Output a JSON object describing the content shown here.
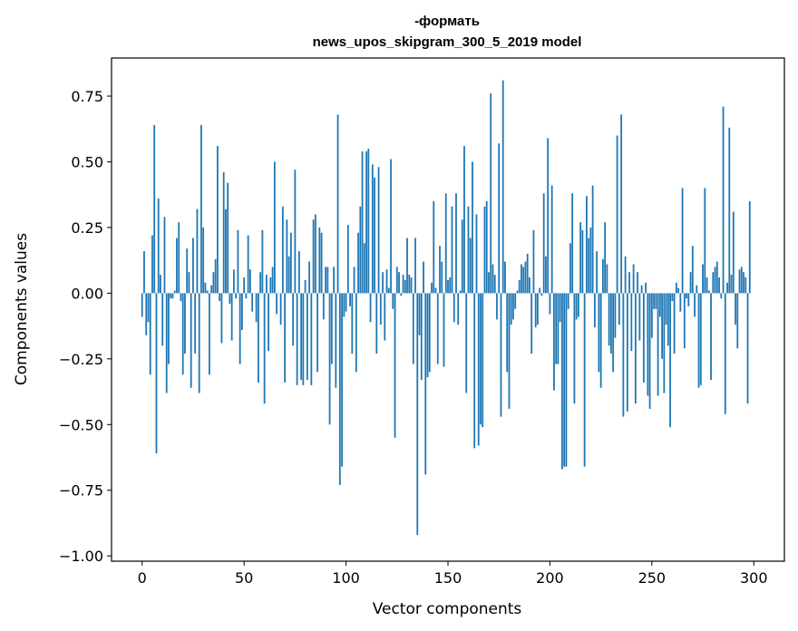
{
  "chart_data": {
    "type": "bar",
    "title_lines": [
      "-формать",
      "news_upos_skipgram_300_5_2019 model"
    ],
    "xlabel": "Vector components",
    "ylabel": "Components values",
    "xlim": [
      -15,
      315
    ],
    "ylim": [
      -1.02,
      0.895
    ],
    "xticks": [
      0,
      50,
      100,
      150,
      200,
      250,
      300
    ],
    "yticks": [
      -1.0,
      -0.75,
      -0.5,
      -0.25,
      0.0,
      0.25,
      0.5,
      0.75
    ],
    "ytick_labels": [
      "−1.00",
      "−0.75",
      "−0.50",
      "−0.25",
      "0.00",
      "0.25",
      "0.50",
      "0.75"
    ],
    "grid": false,
    "legend": "none",
    "bar_color": "#1f77b4",
    "values": [
      -0.09,
      0.16,
      -0.16,
      -0.11,
      -0.31,
      0.22,
      0.64,
      -0.61,
      0.36,
      0.07,
      -0.2,
      0.29,
      -0.38,
      -0.27,
      -0.02,
      -0.02,
      0.01,
      0.21,
      0.27,
      -0.03,
      -0.31,
      -0.23,
      0.17,
      0.08,
      -0.36,
      0.21,
      -0.23,
      0.32,
      -0.38,
      0.64,
      0.25,
      0.04,
      0.01,
      -0.31,
      0.03,
      0.08,
      0.13,
      0.56,
      -0.03,
      -0.19,
      0.46,
      0.32,
      0.42,
      -0.04,
      -0.18,
      0.09,
      -0.02,
      0.24,
      -0.27,
      -0.14,
      0.06,
      -0.02,
      0.22,
      0.09,
      -0.07,
      0.0,
      -0.11,
      -0.34,
      0.08,
      0.24,
      -0.42,
      0.07,
      -0.22,
      0.06,
      0.1,
      0.5,
      -0.08,
      0.0,
      -0.12,
      0.33,
      -0.34,
      0.28,
      0.14,
      0.23,
      -0.2,
      0.47,
      -0.35,
      0.16,
      -0.33,
      -0.35,
      0.05,
      -0.33,
      0.12,
      -0.35,
      0.28,
      0.3,
      -0.3,
      0.25,
      0.23,
      -0.1,
      0.1,
      0.1,
      -0.5,
      -0.27,
      0.1,
      -0.36,
      0.68,
      -0.73,
      -0.66,
      -0.09,
      -0.07,
      0.26,
      -0.05,
      -0.23,
      0.1,
      -0.3,
      0.23,
      0.33,
      0.54,
      0.19,
      0.54,
      0.55,
      -0.11,
      0.49,
      0.44,
      -0.23,
      0.48,
      -0.12,
      0.08,
      -0.18,
      0.09,
      0.02,
      0.51,
      -0.06,
      -0.55,
      0.1,
      0.08,
      -0.01,
      0.07,
      0.05,
      0.21,
      0.07,
      0.06,
      -0.27,
      0.21,
      -0.92,
      -0.16,
      -0.33,
      0.12,
      -0.69,
      -0.32,
      -0.3,
      0.04,
      0.35,
      0.02,
      -0.27,
      0.18,
      0.12,
      -0.28,
      0.38,
      0.05,
      0.06,
      0.33,
      -0.11,
      0.38,
      -0.12,
      0.01,
      0.28,
      0.56,
      -0.38,
      0.33,
      0.21,
      0.5,
      -0.59,
      0.3,
      -0.58,
      -0.5,
      -0.51,
      0.33,
      0.35,
      0.08,
      0.76,
      0.11,
      0.07,
      -0.1,
      0.57,
      -0.47,
      0.81,
      0.12,
      -0.3,
      -0.44,
      -0.12,
      -0.1,
      -0.06,
      0.01,
      0.05,
      0.11,
      0.1,
      0.12,
      0.15,
      0.06,
      -0.23,
      0.24,
      -0.13,
      -0.12,
      0.02,
      -0.01,
      0.38,
      0.14,
      0.59,
      -0.08,
      0.41,
      -0.37,
      -0.27,
      -0.27,
      -0.11,
      -0.67,
      -0.66,
      -0.66,
      -0.06,
      0.19,
      0.38,
      -0.42,
      -0.1,
      -0.09,
      0.27,
      0.24,
      -0.66,
      0.37,
      0.21,
      0.25,
      0.41,
      -0.13,
      0.16,
      -0.3,
      -0.36,
      0.13,
      0.27,
      0.11,
      -0.2,
      -0.23,
      -0.3,
      -0.17,
      0.6,
      -0.12,
      0.68,
      -0.47,
      0.14,
      -0.45,
      0.08,
      -0.22,
      0.11,
      -0.42,
      0.08,
      -0.18,
      0.03,
      -0.34,
      0.04,
      -0.39,
      -0.44,
      -0.17,
      -0.06,
      -0.06,
      -0.39,
      -0.09,
      -0.25,
      -0.38,
      -0.12,
      -0.2,
      -0.51,
      -0.03,
      -0.23,
      0.04,
      0.02,
      -0.07,
      0.4,
      -0.21,
      -0.02,
      -0.05,
      0.08,
      0.18,
      -0.09,
      0.03,
      -0.36,
      -0.35,
      0.11,
      0.4,
      0.06,
      0.01,
      -0.33,
      0.08,
      0.1,
      0.12,
      0.06,
      -0.02,
      0.71,
      -0.46,
      0.04,
      0.63,
      0.07,
      0.31,
      -0.12,
      -0.21,
      0.09,
      0.1,
      0.08,
      0.06,
      -0.42,
      0.35
    ]
  }
}
